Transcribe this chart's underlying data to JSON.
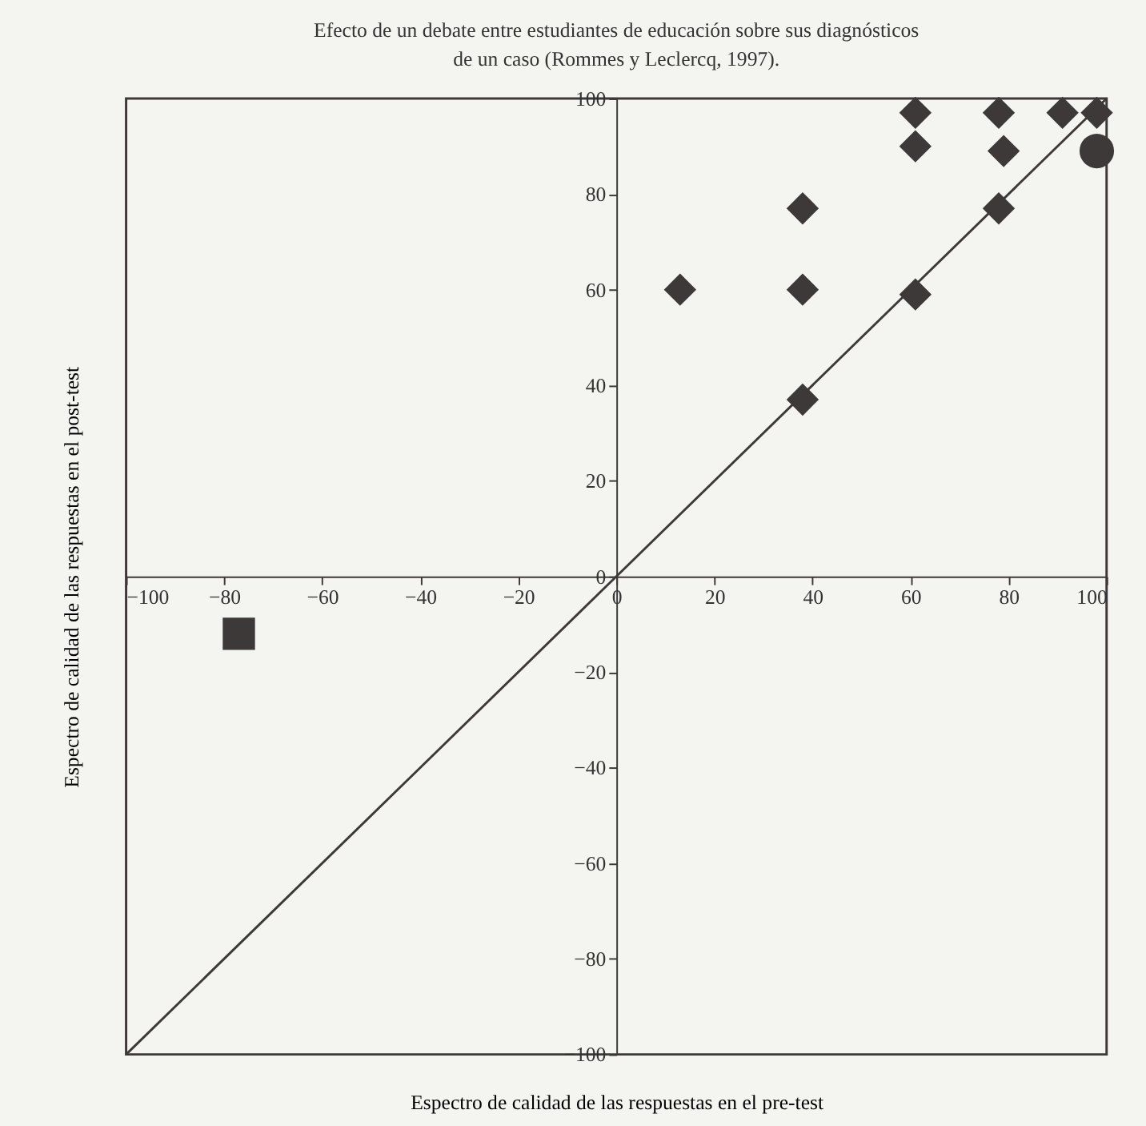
{
  "chart_data": {
    "type": "scatter",
    "title": "Efecto de un debate entre estudiantes de educación sobre sus diagnósticos de un caso (Rommes y Leclercq, 1997).",
    "xlabel": "Espectro de calidad de las respuestas en el pre-test",
    "ylabel": "Espectro de calidad de las respuestas en el post-test",
    "xlim": [
      -100,
      100
    ],
    "ylim": [
      -100,
      100
    ],
    "xticks": [
      -100,
      -80,
      -60,
      -40,
      -20,
      0,
      20,
      40,
      60,
      80,
      100
    ],
    "yticks": [
      -100,
      -80,
      -60,
      -40,
      -20,
      0,
      20,
      40,
      60,
      80,
      100
    ],
    "grid": false,
    "series": [
      {
        "marker": "diamond",
        "color": "#3d3939",
        "x": [
          13,
          38,
          38,
          38,
          61,
          61,
          61,
          78,
          79,
          78,
          91,
          98
        ],
        "values": [
          60,
          77,
          60,
          37,
          97,
          90,
          59,
          97,
          89,
          77,
          97,
          97
        ]
      },
      {
        "marker": "square",
        "color": "#3d3939",
        "x": [
          -77
        ],
        "values": [
          -12
        ]
      },
      {
        "marker": "circle",
        "color": "#3d3939",
        "x": [
          98
        ],
        "values": [
          89
        ]
      },
      {
        "type": "line",
        "marker": "none",
        "line_style": "solid",
        "color": "#3d3939",
        "x": [
          -100,
          100
        ],
        "values": [
          -100,
          100
        ]
      }
    ]
  }
}
